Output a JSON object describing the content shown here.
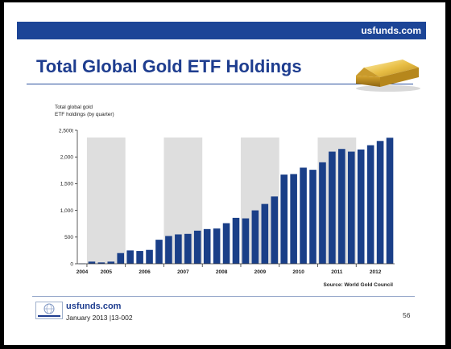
{
  "header": {
    "site": "usfunds.com"
  },
  "title": "Total Global Gold ETF Holdings",
  "footer": {
    "site": "usfunds.com",
    "date_code": "January 2013 |13-002",
    "page_number": "56"
  },
  "colors": {
    "bar": "#1a3f88",
    "shade": "#dedede",
    "header_bar": "#1c4597"
  },
  "chart_data": {
    "type": "bar",
    "title_lines": [
      "Total global gold",
      "ETF holdings (by quarter)"
    ],
    "source": "Source: World Gold Council",
    "ylim": [
      0,
      2500
    ],
    "yticks": [
      0,
      500,
      1000,
      1500,
      2000,
      2500
    ],
    "ytick_labels": [
      "0",
      "500",
      "1,000",
      "1,500",
      "2,000",
      "2,500t"
    ],
    "years": [
      "2004",
      "2005",
      "2006",
      "2007",
      "2008",
      "2009",
      "2010",
      "2011",
      "2012"
    ],
    "shaded_years": [
      "2005",
      "2007",
      "2009",
      "2011"
    ],
    "grid": false,
    "values": [
      5,
      40,
      25,
      40,
      200,
      250,
      240,
      260,
      450,
      520,
      550,
      560,
      620,
      650,
      660,
      760,
      860,
      850,
      1000,
      1120,
      1260,
      1670,
      1680,
      1800,
      1760,
      1900,
      2100,
      2150,
      2100,
      2140,
      2220,
      2300,
      2360
    ]
  }
}
